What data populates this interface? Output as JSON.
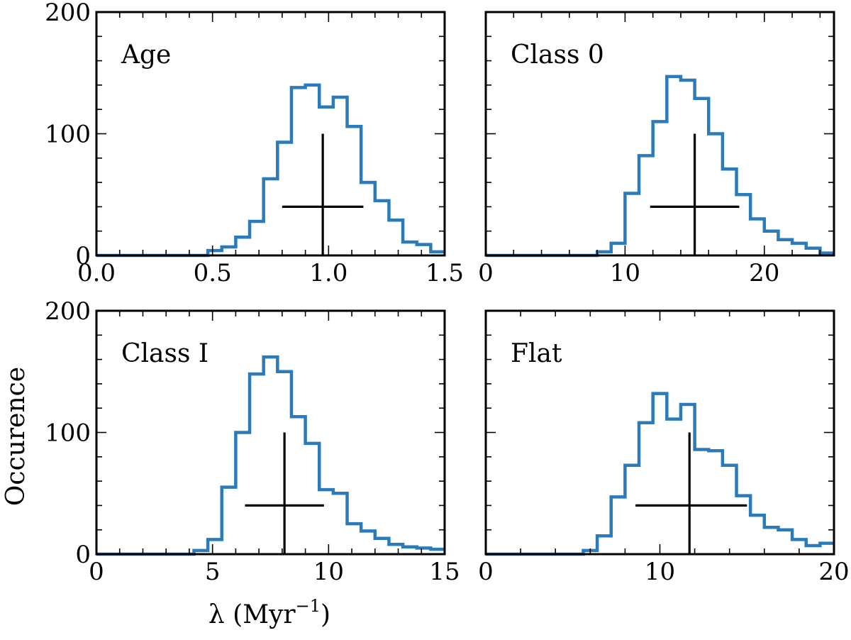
{
  "chart_data": [
    {
      "type": "histogram",
      "panel_label": "Age",
      "xlim": [
        0.0,
        1.5
      ],
      "ylim": [
        0,
        200
      ],
      "xticks": [
        0.0,
        0.5,
        1.0,
        1.5
      ],
      "xtick_labels": [
        "0.0",
        "0.5",
        "1.0",
        "1.5"
      ],
      "xminor": [
        0.1,
        0.2,
        0.3,
        0.4,
        0.6,
        0.7,
        0.8,
        0.9,
        1.1,
        1.2,
        1.3,
        1.4
      ],
      "yticks": [
        0,
        100,
        200
      ],
      "ytick_labels": [
        "0",
        "100",
        "200"
      ],
      "yminor": [
        20,
        40,
        60,
        80,
        120,
        140,
        160,
        180
      ],
      "bins": [
        0.0,
        0.06,
        0.12,
        0.18,
        0.24,
        0.3,
        0.36,
        0.42,
        0.48,
        0.54,
        0.6,
        0.66,
        0.72,
        0.78,
        0.84,
        0.9,
        0.96,
        1.02,
        1.08,
        1.14,
        1.2,
        1.26,
        1.32,
        1.38,
        1.44,
        1.5
      ],
      "counts": [
        0,
        0,
        0,
        0,
        0,
        0,
        0,
        0,
        4,
        7,
        15,
        28,
        63,
        93,
        138,
        140,
        122,
        130,
        106,
        60,
        45,
        29,
        11,
        9,
        3
      ],
      "marker": {
        "x": 0.975,
        "y": 40,
        "xerr": [
          0.8,
          1.15
        ],
        "yerr": [
          0,
          100
        ]
      }
    },
    {
      "type": "histogram",
      "panel_label": "Class 0",
      "xlim": [
        0,
        25
      ],
      "ylim": [
        0,
        200
      ],
      "xticks": [
        0,
        10,
        20
      ],
      "xtick_labels": [
        "0",
        "10",
        "20"
      ],
      "xminor": [
        2,
        4,
        6,
        8,
        12,
        14,
        16,
        18,
        22,
        24
      ],
      "yticks": [
        0,
        100,
        200
      ],
      "ytick_labels": [
        "",
        "",
        ""
      ],
      "yminor": [
        20,
        40,
        60,
        80,
        120,
        140,
        160,
        180
      ],
      "bins": [
        0,
        1,
        2,
        3,
        4,
        5,
        6,
        7,
        8,
        9,
        10,
        11,
        12,
        13,
        14,
        15,
        16,
        17,
        18,
        19,
        20,
        21,
        22,
        23,
        24,
        25
      ],
      "counts": [
        0,
        0,
        0,
        0,
        0,
        0,
        0,
        0,
        3,
        10,
        51,
        82,
        110,
        147,
        144,
        129,
        100,
        71,
        50,
        30,
        20,
        13,
        10,
        6,
        2
      ],
      "marker": {
        "x": 15.0,
        "y": 40,
        "xerr": [
          11.8,
          18.2
        ],
        "yerr": [
          0,
          100
        ]
      }
    },
    {
      "type": "histogram",
      "panel_label": "Class I",
      "xlim": [
        0,
        15
      ],
      "ylim": [
        0,
        200
      ],
      "xticks": [
        0,
        5,
        10,
        15
      ],
      "xtick_labels": [
        "0",
        "5",
        "10",
        "15"
      ],
      "xminor": [
        1,
        2,
        3,
        4,
        6,
        7,
        8,
        9,
        11,
        12,
        13,
        14
      ],
      "yticks": [
        0,
        100,
        200
      ],
      "ytick_labels": [
        "0",
        "100",
        "200"
      ],
      "yminor": [
        20,
        40,
        60,
        80,
        120,
        140,
        160,
        180
      ],
      "bins": [
        0,
        0.6,
        1.2,
        1.8,
        2.4,
        3.0,
        3.6,
        4.2,
        4.8,
        5.4,
        6.0,
        6.6,
        7.2,
        7.8,
        8.4,
        9.0,
        9.6,
        10.2,
        10.8,
        11.4,
        12.0,
        12.6,
        13.2,
        13.8,
        14.4,
        15.0
      ],
      "counts": [
        0,
        0,
        0,
        0,
        0,
        0,
        0,
        3,
        12,
        55,
        100,
        148,
        162,
        150,
        113,
        91,
        53,
        50,
        25,
        19,
        13,
        8,
        6,
        5,
        4
      ],
      "marker": {
        "x": 8.1,
        "y": 40,
        "xerr": [
          6.4,
          9.8
        ],
        "yerr": [
          0,
          100
        ]
      }
    },
    {
      "type": "histogram",
      "panel_label": "Flat",
      "xlim": [
        0,
        20
      ],
      "ylim": [
        0,
        200
      ],
      "xticks": [
        0,
        10,
        20
      ],
      "xtick_labels": [
        "0",
        "10",
        "20"
      ],
      "xminor": [
        2,
        4,
        6,
        8,
        12,
        14,
        16,
        18
      ],
      "yticks": [
        0,
        100,
        200
      ],
      "ytick_labels": [
        "",
        "",
        ""
      ],
      "yminor": [
        20,
        40,
        60,
        80,
        120,
        140,
        160,
        180
      ],
      "bins": [
        0,
        0.8,
        1.6,
        2.4,
        3.2,
        4.0,
        4.8,
        5.6,
        6.4,
        7.2,
        8.0,
        8.8,
        9.6,
        10.4,
        11.2,
        12.0,
        12.8,
        13.6,
        14.4,
        15.2,
        16.0,
        16.8,
        17.6,
        18.4,
        19.2,
        20.0
      ],
      "counts": [
        0,
        0,
        0,
        0,
        0,
        0,
        0,
        3,
        15,
        47,
        73,
        108,
        132,
        111,
        123,
        86,
        85,
        73,
        48,
        32,
        22,
        20,
        12,
        7,
        9
      ],
      "marker": {
        "x": 11.7,
        "y": 40,
        "xerr": [
          8.6,
          15.0
        ],
        "yerr": [
          0,
          100
        ]
      }
    }
  ],
  "xlabel": "λ (Myr",
  "xlabel_exponent": "−1",
  "xlabel_close": ")",
  "ylabel": "Occurence",
  "colors": {
    "histogram": "#2b7bba",
    "marker": "#000000"
  }
}
